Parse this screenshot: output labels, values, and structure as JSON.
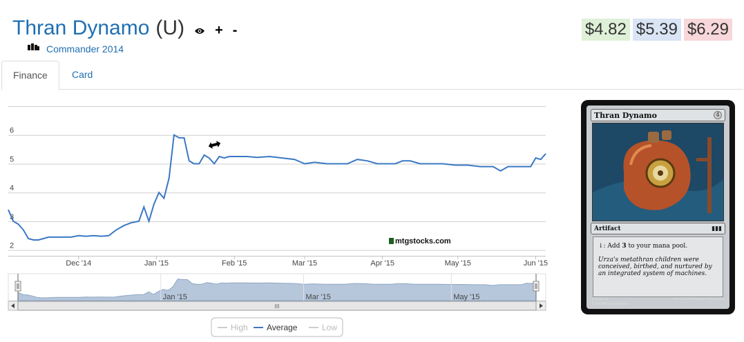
{
  "header": {
    "card_name": "Thran Dynamo",
    "rarity": "(U)",
    "eye_icon": "eye-icon",
    "add_symbol": "+",
    "remove_symbol": "-",
    "set_name": "Commander 2014",
    "set_icon": "commander-set-icon"
  },
  "prices": {
    "low": "$4.82",
    "avg": "$5.39",
    "high": "$6.29"
  },
  "colors": {
    "low_bg": "#dff0d8",
    "avg_bg": "#d9e4f5",
    "high_bg": "#f8d7da",
    "link": "#1f6fb2",
    "series": "#3a78c3",
    "navigator_fill": "#b6c7dc"
  },
  "tabs": [
    {
      "label": "Finance",
      "active": true
    },
    {
      "label": "Card",
      "active": false
    }
  ],
  "chart_data": {
    "type": "line",
    "x_tick_labels": [
      "Dec '14",
      "Jan '15",
      "Feb '15",
      "Mar '15",
      "Apr '15",
      "May '15",
      "Jun '15"
    ],
    "y_tick_labels": [
      "2",
      "3",
      "4",
      "5",
      "6"
    ],
    "ylim": [
      1.8,
      7
    ],
    "grid": true,
    "watermark": "mtgstocks.com",
    "series": [
      {
        "name": "Average",
        "x": [
          "2014-11-03",
          "2014-11-05",
          "2014-11-07",
          "2014-11-09",
          "2014-11-11",
          "2014-11-13",
          "2014-11-15",
          "2014-11-17",
          "2014-11-19",
          "2014-11-22",
          "2014-11-25",
          "2014-11-28",
          "2014-12-01",
          "2014-12-04",
          "2014-12-07",
          "2014-12-10",
          "2014-12-13",
          "2014-12-16",
          "2014-12-19",
          "2014-12-22",
          "2014-12-25",
          "2014-12-27",
          "2014-12-29",
          "2014-12-31",
          "2015-01-02",
          "2015-01-04",
          "2015-01-06",
          "2015-01-08",
          "2015-01-10",
          "2015-01-12",
          "2015-01-14",
          "2015-01-16",
          "2015-01-18",
          "2015-01-20",
          "2015-01-22",
          "2015-01-24",
          "2015-01-26",
          "2015-01-28",
          "2015-01-30",
          "2015-02-01",
          "2015-02-03",
          "2015-02-06",
          "2015-02-10",
          "2015-02-15",
          "2015-02-20",
          "2015-02-25",
          "2015-03-01",
          "2015-03-05",
          "2015-03-10",
          "2015-03-14",
          "2015-03-18",
          "2015-03-22",
          "2015-03-26",
          "2015-03-30",
          "2015-04-03",
          "2015-04-06",
          "2015-04-09",
          "2015-04-12",
          "2015-04-16",
          "2015-04-20",
          "2015-04-25",
          "2015-04-30",
          "2015-05-05",
          "2015-05-10",
          "2015-05-15",
          "2015-05-18",
          "2015-05-21",
          "2015-05-24",
          "2015-05-27",
          "2015-05-30",
          "2015-06-01",
          "2015-06-03",
          "2015-06-05"
        ],
        "y": [
          3.4,
          3.0,
          2.9,
          2.7,
          2.4,
          2.35,
          2.35,
          2.4,
          2.45,
          2.45,
          2.45,
          2.45,
          2.5,
          2.48,
          2.5,
          2.48,
          2.5,
          2.7,
          2.85,
          2.95,
          3.0,
          3.5,
          3.0,
          3.6,
          4.0,
          3.8,
          4.5,
          6.0,
          5.9,
          5.9,
          5.1,
          5.0,
          5.0,
          5.3,
          5.2,
          5.0,
          5.25,
          5.2,
          5.25,
          5.25,
          5.25,
          5.25,
          5.22,
          5.25,
          5.2,
          5.15,
          5.0,
          5.05,
          5.0,
          5.0,
          5.0,
          5.15,
          5.1,
          5.0,
          5.0,
          5.0,
          5.1,
          5.1,
          5.0,
          5.0,
          5.0,
          4.95,
          4.95,
          4.9,
          4.9,
          4.75,
          4.9,
          4.9,
          4.9,
          4.9,
          5.2,
          5.15,
          5.35
        ]
      }
    ],
    "navigator": {
      "x_tick_labels": [
        "Jan '15",
        "Mar '15",
        "May '15"
      ],
      "scroll_grip": "III"
    },
    "legend": {
      "placement": "bottom-center",
      "items": [
        {
          "label": "High",
          "enabled": false
        },
        {
          "label": "Average",
          "enabled": true
        },
        {
          "label": "Low",
          "enabled": false
        }
      ]
    }
  },
  "card_image": {
    "name": "Thran Dynamo",
    "mana_cost": "4",
    "type_line": "Artifact",
    "rules_text_pre": "↓: Add ",
    "rules_text_mana": "3",
    "rules_text_post": " to your mana pool.",
    "flavor_text": "Urza's metathran children were conceived, birthed, and nurtured by an integrated system of machines.",
    "collector_line": "277/337 U",
    "set_line": "C14 • EN • Ron Spears",
    "copyright": "™ & © 2014 Wizards of the Coast"
  }
}
